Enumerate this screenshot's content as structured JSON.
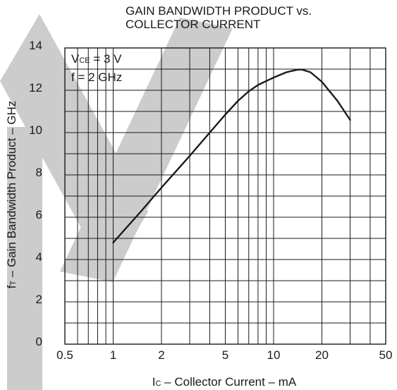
{
  "chart_data": {
    "type": "line",
    "title_lines": [
      "GAIN BANDWIDTH PRODUCT vs.",
      "COLLECTOR CURRENT"
    ],
    "conditions": [
      {
        "main": "V",
        "sub": "CE",
        "rest": " = 3 V"
      },
      {
        "main": "f = 2 GHz",
        "sub": "",
        "rest": ""
      }
    ],
    "ylabel": {
      "main": "f",
      "sub": "T",
      "rest": " – Gain Bandwidth Product – GHz"
    },
    "xlabel": {
      "main": "I",
      "sub": "C",
      "rest": " – Collector Current – mA"
    },
    "x_scale": "log",
    "xlim": [
      0.5,
      50
    ],
    "ylim": [
      0,
      14
    ],
    "x_ticks": [
      0.5,
      1,
      2,
      5,
      10,
      20,
      50
    ],
    "x_tick_labels": [
      "0.5",
      "1",
      "2",
      "5",
      "10",
      "20",
      "50"
    ],
    "y_ticks": [
      0,
      2,
      4,
      6,
      8,
      10,
      12,
      14
    ],
    "y_tick_labels": [
      "0",
      "2",
      "4",
      "6",
      "8",
      "10",
      "12",
      "14"
    ],
    "grid": true,
    "x_grid": [
      0.6,
      0.7,
      0.8,
      0.9,
      1,
      2,
      3,
      4,
      5,
      6,
      7,
      8,
      9,
      10,
      20,
      30,
      40
    ],
    "y_grid": [
      1,
      2,
      3,
      4,
      5,
      6,
      7,
      8,
      9,
      10,
      11,
      12,
      13
    ],
    "series": [
      {
        "x": [
          1,
          1.5,
          2,
          3,
          4,
          5,
          6,
          7,
          8,
          10,
          12,
          14,
          15,
          17,
          20,
          25,
          30
        ],
        "y": [
          4.8,
          6.3,
          7.4,
          8.9,
          10.0,
          10.85,
          11.5,
          11.95,
          12.25,
          12.6,
          12.85,
          12.97,
          12.98,
          12.85,
          12.4,
          11.5,
          10.6
        ]
      }
    ],
    "colors": {
      "line": "#1a1a1a",
      "grid": "#1a1a1a",
      "watermark": "#cccccc"
    }
  }
}
